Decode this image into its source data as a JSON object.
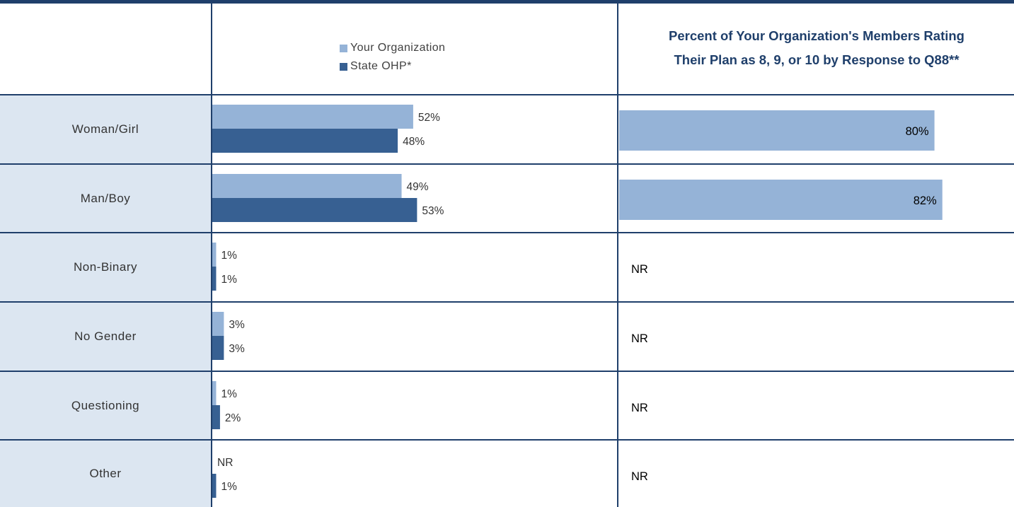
{
  "legend": {
    "your_org": "Your Organization",
    "state": "State OHP*"
  },
  "right_title_line1": "Percent of Your Organization's Members Rating",
  "right_title_line2": "Their Plan as 8, 9, or 10 by Response to Q88**",
  "colors": {
    "your_org": "#95b3d7",
    "state": "#376092",
    "row_bg": "#dce6f1",
    "border": "#1f3f6b"
  },
  "chart_data": [
    {
      "type": "bar",
      "orientation": "horizontal",
      "categories": [
        "Woman/Girl",
        "Man/Boy",
        "Non-Binary",
        "No Gender",
        "Questioning",
        "Other"
      ],
      "series": [
        {
          "name": "Your Organization",
          "values": [
            52,
            49,
            1,
            3,
            1,
            null
          ],
          "labels": [
            "52%",
            "49%",
            "1%",
            "3%",
            "1%",
            "NR"
          ]
        },
        {
          "name": "State OHP*",
          "values": [
            48,
            53,
            1,
            3,
            2,
            1
          ],
          "labels": [
            "48%",
            "53%",
            "1%",
            "3%",
            "2%",
            "1%"
          ]
        }
      ],
      "xlim": [
        0,
        100
      ],
      "unit": "%"
    },
    {
      "type": "bar",
      "orientation": "horizontal",
      "title": "Percent of Your Organization's Members Rating Their Plan as 8, 9, or 10 by Response to Q88**",
      "categories": [
        "Woman/Girl",
        "Man/Boy",
        "Non-Binary",
        "No Gender",
        "Questioning",
        "Other"
      ],
      "series": [
        {
          "values": [
            80,
            82,
            null,
            null,
            null,
            null
          ],
          "labels": [
            "80%",
            "82%",
            "NR",
            "NR",
            "NR",
            "NR"
          ]
        }
      ],
      "xlim": [
        0,
        100
      ],
      "unit": "%"
    }
  ]
}
